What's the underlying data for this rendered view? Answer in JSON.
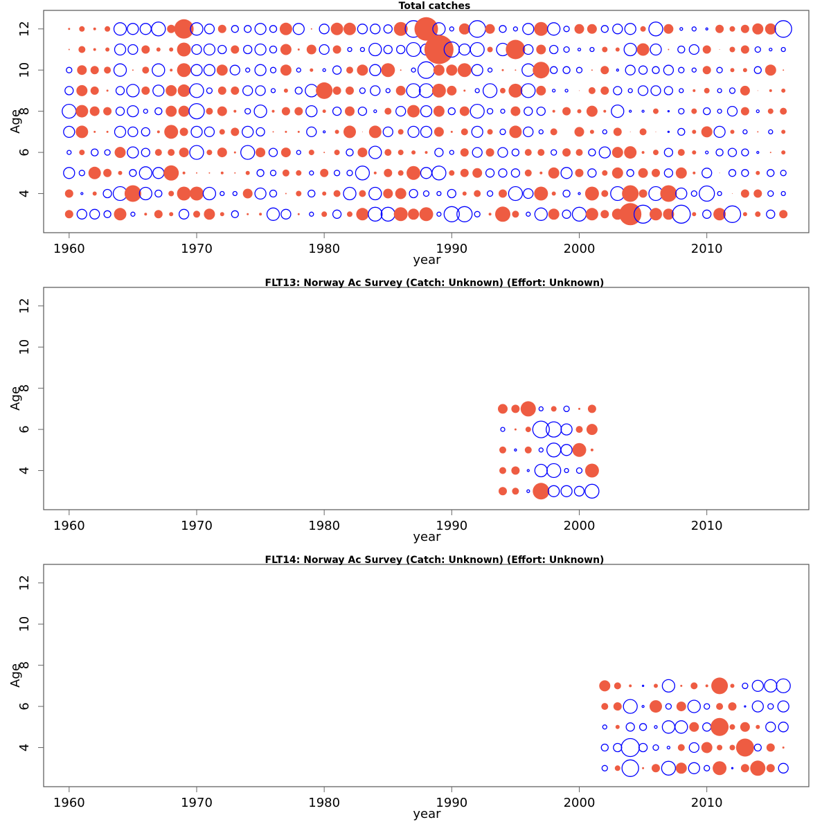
{
  "colors": {
    "positive": "#ee5c42",
    "negative": "#0000ff",
    "frame": "#555555"
  },
  "legend": {
    "positive": "filled circle = positive residual",
    "negative": "open circle = negative residual"
  },
  "chart_data": [
    {
      "type": "scatter",
      "subtype": "bubble",
      "title": "Total catches",
      "xlabel": "year",
      "ylabel": "Age",
      "xlim": [
        1958,
        2018
      ],
      "ylim": [
        2.1,
        12.9
      ],
      "xticks": [
        "1960",
        "1970",
        "1980",
        "1990",
        "2000",
        "2010"
      ],
      "yticks": [
        "4",
        "6",
        "8",
        "10",
        "12"
      ],
      "year_start": 1960,
      "ages": [
        12,
        11,
        10,
        9,
        8,
        7,
        6,
        5,
        4,
        3
      ],
      "residuals": [
        [
          0.3,
          0.8,
          0.4,
          0.8,
          -1.8,
          -1.6,
          -1.6,
          -2.0,
          1.2,
          2.8,
          -1.8,
          -1.4,
          1.2,
          -1.0,
          -1.0,
          -1.6,
          -1.0,
          1.8,
          -1.6,
          0.2,
          -1.4,
          1.8,
          1.8,
          -1.4,
          -1.4,
          -1.2,
          2.0,
          -2.4,
          3.4,
          -1.8,
          -0.6,
          1.6,
          -2.4,
          1.4,
          -1.0,
          -0.6,
          -1.6,
          2.0,
          -1.8,
          -0.8,
          1.4,
          1.4,
          -1.0,
          -1.4,
          -1.6,
          0.8,
          -2.0,
          1.4,
          -0.4,
          -0.6,
          -0.3,
          1.2,
          0.8,
          1.2,
          1.6,
          1.6,
          -2.4
        ],
        [
          0.2,
          1.0,
          0.4,
          0.6,
          -1.6,
          -1.4,
          1.2,
          0.6,
          0.6,
          2.0,
          -1.4,
          -1.6,
          -1.2,
          1.2,
          -1.2,
          -1.6,
          -1.0,
          1.6,
          0.3,
          1.4,
          -1.4,
          1.2,
          -0.6,
          -0.6,
          -1.8,
          -1.2,
          -1.2,
          -2.0,
          -1.6,
          4.2,
          -2.2,
          -1.6,
          -2.0,
          0.8,
          -1.8,
          2.8,
          -1.4,
          1.4,
          -1.2,
          -0.8,
          -0.4,
          -0.6,
          0.8,
          0.6,
          -1.8,
          1.8,
          -1.6,
          0.2,
          -1.0,
          -1.4,
          1.2,
          0.1,
          0.8,
          1.2,
          -0.8,
          -0.4,
          -0.6
        ],
        [
          -0.8,
          1.4,
          1.2,
          1.0,
          -1.8,
          0.2,
          1.0,
          -1.8,
          0.4,
          2.0,
          -1.6,
          -1.6,
          1.6,
          -1.4,
          -0.6,
          -1.6,
          -0.8,
          1.6,
          -0.6,
          0.5,
          -0.4,
          -1.2,
          1.0,
          1.6,
          -1.6,
          2.0,
          0.2,
          -0.6,
          -2.4,
          1.6,
          1.6,
          2.0,
          -1.6,
          -0.6,
          0.3,
          0.2,
          -1.8,
          2.4,
          -1.0,
          -1.0,
          -0.8,
          0.2,
          1.2,
          -0.3,
          -1.4,
          -1.2,
          -1.0,
          -1.4,
          -0.8,
          -0.6,
          1.2,
          -0.8,
          0.6,
          0.6,
          -1.0,
          1.6,
          0.2
        ],
        [
          -1.2,
          1.6,
          1.2,
          0.3,
          -1.2,
          -1.8,
          1.2,
          -1.6,
          1.6,
          1.8,
          -2.0,
          -0.8,
          1.2,
          1.2,
          -1.4,
          -1.4,
          -0.6,
          0.6,
          -1.0,
          -1.8,
          2.4,
          1.2,
          1.2,
          -0.8,
          -1.4,
          -0.6,
          1.4,
          -2.0,
          -2.0,
          2.0,
          1.4,
          0.3,
          -0.6,
          -2.0,
          0.8,
          2.0,
          -2.0,
          1.4,
          -0.4,
          -0.4,
          0.1,
          1.0,
          1.2,
          -1.2,
          -0.6,
          -1.4,
          -1.4,
          -1.2,
          -0.6,
          0.4,
          0.8,
          -0.6,
          -0.8,
          1.4,
          0.1,
          0.4,
          0.6
        ],
        [
          -2.0,
          1.8,
          1.4,
          1.2,
          -1.2,
          -1.6,
          -0.6,
          -1.0,
          1.6,
          1.6,
          -2.2,
          1.0,
          1.4,
          0.4,
          -0.8,
          -1.8,
          0.4,
          1.2,
          1.2,
          -1.6,
          0.5,
          -1.2,
          1.4,
          -1.2,
          -0.4,
          1.0,
          -1.4,
          1.8,
          -1.6,
          1.6,
          -1.0,
          1.4,
          -2.0,
          -0.8,
          -0.6,
          1.4,
          -1.2,
          -1.2,
          0.4,
          1.2,
          0.6,
          1.6,
          0.4,
          -1.8,
          -0.3,
          -0.3,
          0.8,
          -0.2,
          -0.8,
          0.8,
          -1.0,
          -0.6,
          -1.4,
          1.2,
          -0.4,
          0.8,
          1.0
        ],
        [
          -1.6,
          1.8,
          0.3,
          0.3,
          -1.6,
          -1.4,
          -1.2,
          0.4,
          2.0,
          1.2,
          -1.6,
          -1.4,
          0.8,
          1.2,
          -1.6,
          -1.2,
          0.2,
          0.3,
          0.3,
          -1.4,
          -0.3,
          0.6,
          1.8,
          0.1,
          1.8,
          -1.4,
          0.8,
          -1.6,
          -1.6,
          1.4,
          0.3,
          1.0,
          -1.6,
          0.8,
          -0.8,
          1.8,
          -1.4,
          -0.6,
          1.0,
          0.0,
          1.4,
          0.6,
          -0.6,
          1.2,
          0.1,
          1.0,
          0.1,
          -0.2,
          -1.0,
          0.6,
          1.6,
          -1.6,
          0.6,
          -0.6,
          0.2,
          -0.6,
          0.6
        ],
        [
          -0.6,
          0.8,
          -1.0,
          -0.8,
          1.6,
          -1.6,
          -1.2,
          1.0,
          1.0,
          1.4,
          -2.0,
          0.8,
          1.4,
          0.3,
          -2.0,
          1.4,
          -1.2,
          1.4,
          -0.6,
          0.8,
          0.2,
          0.8,
          -1.0,
          1.4,
          -1.8,
          1.0,
          0.8,
          0.6,
          0.4,
          -1.2,
          -0.6,
          1.2,
          -1.4,
          1.2,
          -1.4,
          -1.0,
          1.0,
          1.0,
          -0.8,
          1.2,
          1.0,
          -1.0,
          -1.6,
          1.6,
          1.8,
          0.4,
          0.8,
          -1.2,
          1.0,
          0.6,
          -0.4,
          -1.0,
          -1.2,
          -1.0,
          -0.3,
          0.2,
          0.6
        ],
        [
          -1.6,
          -0.8,
          1.8,
          1.2,
          0.6,
          -1.0,
          -1.8,
          -1.6,
          2.2,
          0.4,
          0.2,
          0.2,
          0.4,
          0.2,
          0.6,
          -1.0,
          -0.8,
          1.0,
          0.8,
          -0.6,
          1.2,
          -0.8,
          -0.8,
          -2.0,
          0.4,
          1.2,
          0.8,
          2.0,
          -1.6,
          -2.0,
          0.8,
          1.2,
          1.4,
          -1.2,
          -1.2,
          -1.2,
          1.0,
          0.4,
          1.6,
          -1.6,
          1.2,
          -1.2,
          0.8,
          1.6,
          -1.0,
          1.4,
          1.2,
          -1.2,
          1.6,
          0.4,
          -1.4,
          0.1,
          -1.0,
          -1.0,
          0.6,
          -1.0,
          -0.8
        ],
        [
          1.2,
          -0.3,
          0.6,
          -1.2,
          -2.0,
          2.4,
          -1.8,
          -1.0,
          0.8,
          2.0,
          2.0,
          -1.8,
          -0.6,
          -0.6,
          1.4,
          -1.6,
          -1.0,
          0.2,
          0.8,
          -1.0,
          0.6,
          1.0,
          -1.8,
          1.0,
          -1.8,
          1.4,
          1.6,
          -1.2,
          -0.8,
          -0.6,
          -1.2,
          0.6,
          1.0,
          -0.8,
          1.2,
          -2.0,
          -1.4,
          2.0,
          0.6,
          -1.0,
          -0.3,
          2.0,
          1.0,
          -2.0,
          2.4,
          1.2,
          -2.0,
          2.4,
          -1.6,
          -0.8,
          -2.2,
          -0.6,
          0.1,
          1.2,
          1.2,
          -0.8,
          -0.6
        ],
        [
          1.2,
          -1.4,
          -1.4,
          -1.0,
          1.8,
          -0.6,
          0.4,
          1.2,
          0.6,
          -1.4,
          1.0,
          1.6,
          0.6,
          -1.0,
          0.3,
          0.4,
          -1.8,
          -1.4,
          0.3,
          -0.6,
          0.8,
          -1.2,
          0.8,
          1.8,
          -2.0,
          -2.0,
          2.0,
          1.6,
          2.0,
          -0.6,
          -2.2,
          -2.2,
          -0.8,
          0.4,
          2.2,
          1.0,
          -0.6,
          -1.8,
          1.6,
          -1.2,
          -2.0,
          1.8,
          1.2,
          1.6,
          3.2,
          -2.6,
          1.8,
          1.6,
          -2.6,
          0.6,
          -1.2,
          1.8,
          -2.4,
          0.6,
          0.8,
          -1.2,
          1.2
        ]
      ]
    },
    {
      "type": "scatter",
      "subtype": "bubble",
      "title": "FLT13: Norway Ac Survey (Catch: Unknown) (Effort: Unknown)",
      "xlabel": "year",
      "ylabel": "Age",
      "xlim": [
        1958,
        2018
      ],
      "ylim": [
        2.1,
        12.9
      ],
      "xticks": [
        "1960",
        "1970",
        "1980",
        "1990",
        "2000",
        "2010"
      ],
      "yticks": [
        "4",
        "6",
        "8",
        "10",
        "12"
      ],
      "year_start": 1994,
      "ages": [
        7,
        6,
        5,
        4,
        3
      ],
      "residuals": [
        [
          1.4,
          1.2,
          2.2,
          -0.6,
          0.8,
          -0.8,
          0.3,
          1.2
        ],
        [
          -0.6,
          0.3,
          0.8,
          -2.4,
          -2.2,
          -1.6,
          1.0,
          1.6
        ],
        [
          1.0,
          -0.3,
          1.0,
          -0.6,
          -2.0,
          -1.6,
          2.0,
          0.4
        ],
        [
          1.0,
          1.2,
          -0.3,
          -1.8,
          -2.0,
          -0.6,
          -0.8,
          2.0
        ],
        [
          1.2,
          1.0,
          -0.4,
          2.4,
          -1.6,
          -1.6,
          -1.4,
          -2.0
        ]
      ]
    },
    {
      "type": "scatter",
      "subtype": "bubble",
      "title": "FLT14: Norway Ac Survey (Catch: Unknown) (Effort: Unknown)",
      "xlabel": "year",
      "ylabel": "Age",
      "xlim": [
        1958,
        2018
      ],
      "ylim": [
        2.1,
        12.9
      ],
      "xticks": [
        "1960",
        "1970",
        "1980",
        "1990",
        "2000",
        "2010"
      ],
      "yticks": [
        "4",
        "6",
        "8",
        "10",
        "12"
      ],
      "year_start": 2002,
      "ages": [
        7,
        6,
        5,
        4,
        3
      ],
      "residuals": [
        [
          1.6,
          1.0,
          0.4,
          -0.2,
          0.6,
          -1.8,
          0.3,
          1.0,
          0.4,
          2.4,
          0.6,
          -0.8,
          -1.6,
          -1.8,
          -2.0
        ],
        [
          1.0,
          1.2,
          -2.0,
          -0.3,
          1.8,
          -0.8,
          1.4,
          -1.8,
          -0.8,
          1.0,
          1.2,
          -0.2,
          -1.6,
          -0.8,
          -1.6
        ],
        [
          -0.6,
          0.6,
          -1.2,
          -1.0,
          -0.4,
          -1.8,
          -1.8,
          1.4,
          -1.2,
          2.6,
          0.8,
          1.4,
          0.6,
          -1.4,
          -1.4
        ],
        [
          -1.0,
          -1.2,
          -2.6,
          -1.2,
          -0.8,
          -0.4,
          1.0,
          -1.4,
          1.6,
          0.8,
          0.8,
          2.6,
          -1.0,
          1.2,
          0.3
        ],
        [
          -0.8,
          0.8,
          -2.4,
          0.3,
          1.2,
          -2.0,
          1.6,
          -1.6,
          -0.8,
          2.0,
          -0.2,
          1.2,
          2.2,
          1.2,
          -1.4
        ]
      ]
    }
  ]
}
